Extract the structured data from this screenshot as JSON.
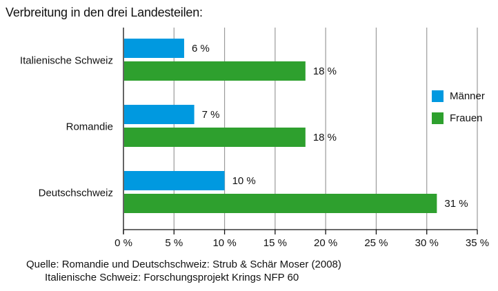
{
  "chart_data": {
    "type": "bar",
    "orientation": "horizontal",
    "title": "Verbreitung in den drei Landesteilen:",
    "categories": [
      "Italienische Schweiz",
      "Romandie",
      "Deutschschweiz"
    ],
    "series": [
      {
        "name": "Männer",
        "color": "#0099e0",
        "values": [
          6,
          7,
          10
        ],
        "labels": [
          "6 %",
          "7 %",
          "10 %"
        ]
      },
      {
        "name": "Frauen",
        "color": "#2ea02e",
        "values": [
          18,
          18,
          31
        ],
        "labels": [
          "18 %",
          "18 %",
          "31 %"
        ]
      }
    ],
    "xlim": [
      0,
      35
    ],
    "xticks": [
      0,
      5,
      10,
      15,
      20,
      25,
      30,
      35
    ],
    "xtick_labels": [
      "0 %",
      "5 %",
      "10 %",
      "15 %",
      "20 %",
      "25 %",
      "30 %",
      "35 %"
    ],
    "grid": true,
    "legend_position": "right"
  },
  "source": {
    "line1": "Quelle: Romandie und Deutschschweiz: Strub & Schär Moser (2008)",
    "line2": "Italienische Schweiz: Forschungsprojekt Krings NFP 60"
  }
}
